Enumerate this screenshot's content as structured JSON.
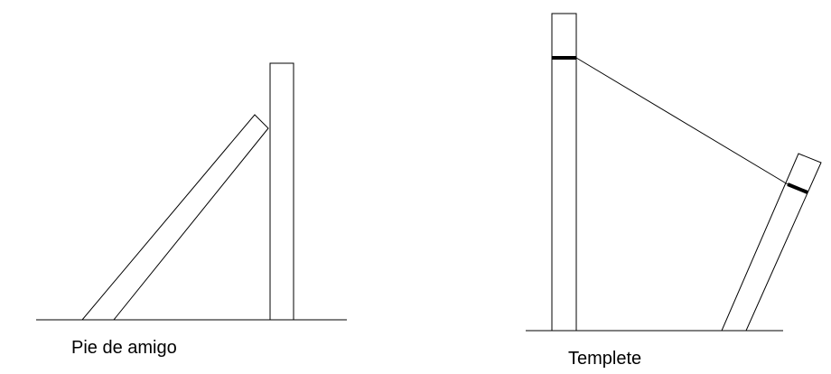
{
  "figures": {
    "left": {
      "caption": "Pie de amigo"
    },
    "right": {
      "caption": "Templete"
    }
  },
  "colors": {
    "stroke": "#000000",
    "background": "#ffffff"
  }
}
